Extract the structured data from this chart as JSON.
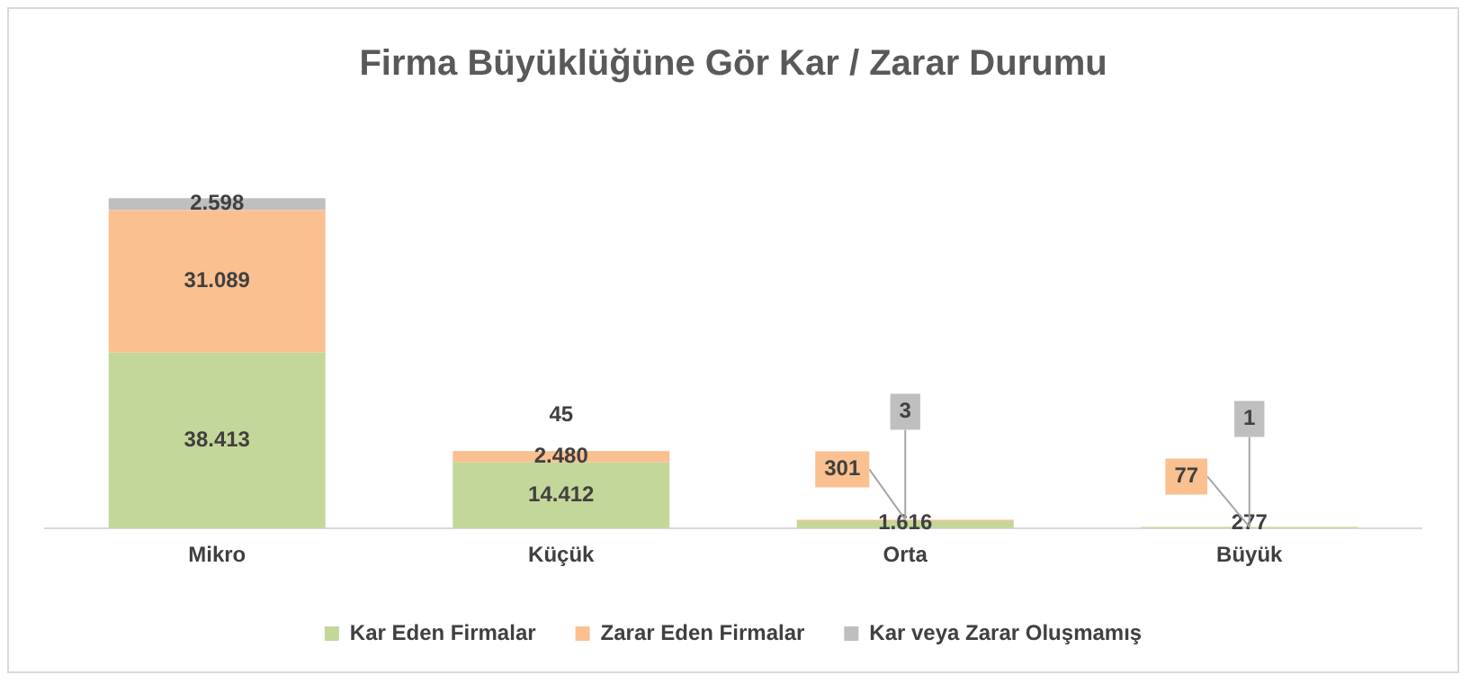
{
  "chart_data": {
    "type": "bar",
    "title": "Firma Büyüklüğüne Gör Kar / Zarar Durumu",
    "categories": [
      "Mikro",
      "Küçük",
      "Orta",
      "Büyük"
    ],
    "stacked": true,
    "legend": "bottom",
    "grid": false,
    "tick_labels": "x",
    "series": [
      {
        "name": "Kar Eden Firmalar",
        "color": "#c4d79b",
        "values": [
          38413,
          14412,
          1616,
          277
        ],
        "value_labels": [
          "38.413",
          "14.412",
          "1.616",
          "277"
        ]
      },
      {
        "name": "Zarar Eden Firmalar",
        "color": "#fac090",
        "values": [
          31089,
          2480,
          301,
          77
        ],
        "value_labels": [
          "31.089",
          "2.480",
          "301",
          "77"
        ]
      },
      {
        "name": "Kar veya Zarar Oluşmamış",
        "color": "#bfbfbf",
        "values": [
          2598,
          45,
          3,
          1
        ],
        "value_labels": [
          "2.598",
          "45",
          "3",
          "1"
        ]
      }
    ]
  }
}
